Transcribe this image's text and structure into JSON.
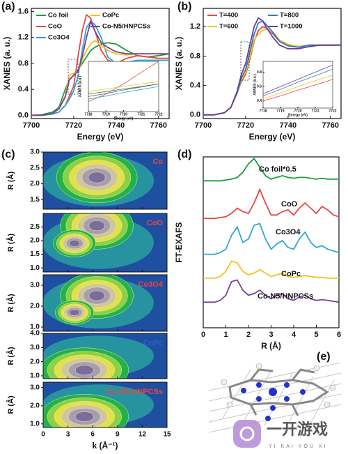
{
  "chart_data": [
    {
      "type": "line",
      "panel_label": "(a)",
      "xlabel": "Energy (eV)",
      "ylabel": "XANES (a. u.)",
      "xlim": [
        7700,
        7765
      ],
      "xticks": [
        7700,
        7720,
        7740,
        7760
      ],
      "ylim": [
        -0.05,
        1.65
      ],
      "yticks": [
        {
          "value": 0,
          "label": "0.0"
        },
        0.4,
        0.8,
        1.2,
        1.6
      ],
      "legend": true,
      "x": [
        7700,
        7705,
        7710,
        7713,
        7716,
        7718,
        7720,
        7722,
        7724,
        7726,
        7728,
        7730,
        7733,
        7736,
        7740,
        7745,
        7750,
        7755,
        7760,
        7765
      ],
      "series": [
        {
          "name": "Co foil",
          "color": "#1a9e3a",
          "values": [
            0.0,
            0.01,
            0.05,
            0.12,
            0.4,
            0.55,
            0.62,
            0.7,
            0.8,
            0.9,
            1.0,
            1.05,
            1.1,
            1.12,
            1.1,
            1.0,
            0.92,
            0.9,
            0.92,
            0.95
          ]
        },
        {
          "name": "CoO",
          "color": "#e8463f",
          "values": [
            0.0,
            0.0,
            0.02,
            0.05,
            0.15,
            0.3,
            0.45,
            0.9,
            1.3,
            1.55,
            1.5,
            1.3,
            1.0,
            0.85,
            0.8,
            0.88,
            0.92,
            0.9,
            0.88,
            0.88
          ]
        },
        {
          "name": "Co3O4",
          "color": "#2ba6d6",
          "values": [
            0.0,
            0.0,
            0.02,
            0.05,
            0.15,
            0.25,
            0.38,
            0.6,
            1.0,
            1.35,
            1.45,
            1.4,
            1.2,
            0.9,
            0.8,
            0.82,
            0.85,
            0.85,
            0.85,
            0.85
          ]
        },
        {
          "name": "CoPc",
          "color": "#f2c318",
          "values": [
            0.0,
            0.0,
            0.03,
            0.1,
            0.3,
            0.62,
            0.65,
            0.68,
            0.85,
            1.0,
            1.1,
            1.15,
            1.08,
            1.0,
            0.95,
            0.93,
            0.95,
            0.95,
            0.95,
            0.95
          ]
        },
        {
          "name": "Co-N5/HNPCSs",
          "color": "#7b3f9e",
          "values": [
            0.0,
            0.0,
            0.03,
            0.1,
            0.28,
            0.55,
            0.62,
            0.68,
            0.9,
            1.2,
            1.45,
            1.3,
            1.12,
            1.05,
            0.98,
            0.95,
            0.95,
            0.95,
            0.95,
            0.95
          ]
        }
      ]
    },
    {
      "type": "line",
      "xlabel": "Energy (eV)",
      "ylabel": "XANES (a.u.)",
      "xlim": [
        7718,
        7722
      ],
      "xticks": [
        7718,
        7719,
        7720,
        7721,
        7722
      ],
      "ylim": [
        0,
        1
      ],
      "x": [
        7718,
        7719,
        7720,
        7721,
        7722
      ],
      "series": [
        {
          "color": "#1a9e3a",
          "values": [
            0.35,
            0.4,
            0.45,
            0.5,
            0.55
          ]
        },
        {
          "color": "#e8463f",
          "values": [
            0.2,
            0.35,
            0.55,
            0.78,
            1.0
          ]
        },
        {
          "color": "#2ba6d6",
          "values": [
            0.25,
            0.31,
            0.38,
            0.44,
            0.5
          ]
        },
        {
          "color": "#f2c318",
          "values": [
            0.4,
            0.45,
            0.5,
            0.55,
            0.6
          ]
        },
        {
          "color": "#7b3f9e",
          "values": [
            0.3,
            0.36,
            0.43,
            0.49,
            0.55
          ]
        }
      ]
    },
    {
      "type": "line",
      "panel_label": "(b)",
      "xlabel": "Energy (eV)",
      "ylabel": "XANES (a. u.)",
      "xlim": [
        7700,
        7765
      ],
      "xticks": [
        7700,
        7720,
        7740,
        7760
      ],
      "ylim": [
        -0.05,
        1.45
      ],
      "yticks": [
        {
          "value": 0,
          "label": "0.0"
        },
        0.4,
        0.8,
        1.2
      ],
      "legend": true,
      "x": [
        7700,
        7705,
        7710,
        7713,
        7716,
        7718,
        7720,
        7722,
        7724,
        7726,
        7728,
        7730,
        7733,
        7736,
        7740,
        7745,
        7750,
        7755,
        7760,
        7765
      ],
      "series": [
        {
          "name": "T=400",
          "color": "#e8463f",
          "values": [
            0.0,
            0.0,
            0.03,
            0.1,
            0.3,
            0.45,
            0.55,
            0.75,
            1.0,
            1.15,
            1.2,
            1.18,
            1.1,
            1.0,
            0.95,
            0.93,
            0.95,
            0.95,
            0.95,
            0.95
          ]
        },
        {
          "name": "T=600",
          "color": "#f2c318",
          "values": [
            0.0,
            0.0,
            0.03,
            0.1,
            0.3,
            0.47,
            0.58,
            0.78,
            1.02,
            1.1,
            1.15,
            1.17,
            1.12,
            1.02,
            0.96,
            0.93,
            0.95,
            0.95,
            0.95,
            0.95
          ]
        },
        {
          "name": "T=800",
          "color": "#2b7fc4",
          "values": [
            0.0,
            0.0,
            0.03,
            0.1,
            0.3,
            0.5,
            0.62,
            0.85,
            1.1,
            1.25,
            1.28,
            1.22,
            1.12,
            1.0,
            0.94,
            0.92,
            0.95,
            0.95,
            0.95,
            0.95
          ]
        },
        {
          "name": "T=1000",
          "color": "#6a3d9a",
          "values": [
            0.0,
            0.0,
            0.03,
            0.1,
            0.32,
            0.55,
            0.7,
            0.95,
            1.2,
            1.32,
            1.28,
            1.18,
            1.05,
            0.95,
            0.9,
            0.9,
            0.93,
            0.95,
            0.95,
            0.95
          ]
        }
      ]
    },
    {
      "type": "line",
      "xlabel": "Energy (eV)",
      "ylabel": "XANES (a.u.)",
      "xlim": [
        7718,
        7722
      ],
      "xticks": [
        7718,
        7719,
        7720,
        7721,
        7722
      ],
      "ylim": [
        0.3,
        0.95
      ],
      "yticks": [
        0.4,
        0.6,
        0.8
      ],
      "x": [
        7718,
        7719,
        7720,
        7721,
        7722
      ],
      "series": [
        {
          "color": "#e8463f",
          "values": [
            0.4,
            0.47,
            0.55,
            0.62,
            0.7
          ]
        },
        {
          "color": "#f2c318",
          "values": [
            0.43,
            0.51,
            0.6,
            0.68,
            0.76
          ]
        },
        {
          "color": "#2b7fc4",
          "values": [
            0.47,
            0.56,
            0.66,
            0.75,
            0.84
          ]
        },
        {
          "color": "#6a3d9a",
          "values": [
            0.5,
            0.6,
            0.7,
            0.8,
            0.9
          ]
        }
      ]
    },
    {
      "type": "contour",
      "panel_label": "(c)",
      "xlabel": "k (Å⁻¹)",
      "ylabel": "R (Å)",
      "xlim": [
        0,
        15
      ],
      "xticks": [
        0,
        3,
        6,
        9,
        12,
        15
      ],
      "panels": [
        {
          "label": "Co",
          "label_color": "#e8463f",
          "ylim": [
            1.2,
            3.0
          ],
          "yticks": [
            1.5,
            {
              "value": 2,
              "label": "2.0"
            },
            2.5,
            {
              "value": 3,
              "label": "3.0"
            }
          ]
        },
        {
          "label": "CoO",
          "label_color": "#e8463f",
          "ylim": [
            0.85,
            3.0
          ],
          "yticks": [
            {
              "value": 1,
              "label": "1.0"
            },
            1.5,
            {
              "value": 2,
              "label": "2.0"
            },
            2.5
          ]
        },
        {
          "label": "Co3O4",
          "label_color": "#e8463f",
          "ylim": [
            0.8,
            3.5
          ],
          "yticks": [
            {
              "value": 1,
              "label": "1.0"
            },
            {
              "value": 2,
              "label": "2.0"
            },
            {
              "value": 3,
              "label": "3.0"
            }
          ]
        },
        {
          "label": "CoPc",
          "label_color": "#2b5fd0",
          "ylim": [
            0.8,
            4.0
          ],
          "yticks": [
            {
              "value": 1,
              "label": "1.0"
            },
            {
              "value": 2,
              "label": "2.0"
            },
            {
              "value": 3,
              "label": "3.0"
            },
            {
              "value": 4,
              "label": "4.0"
            }
          ]
        },
        {
          "label": "Co-N5-HNPCSs",
          "label_color": "#e8463f",
          "ylim": [
            0.8,
            3.3
          ],
          "yticks": [
            {
              "value": 1,
              "label": "1.0"
            },
            {
              "value": 2,
              "label": "2.0"
            },
            {
              "value": 3,
              "label": "3.0"
            }
          ]
        }
      ]
    },
    {
      "type": "line",
      "panel_label": "(d)",
      "xlabel": "R (Å)",
      "ylabel": "FT-EXAFS",
      "xlim": [
        0,
        6
      ],
      "xticks": [
        0,
        1,
        2,
        3,
        4,
        5,
        6
      ],
      "ylim": [
        0,
        10
      ],
      "names_on_curves": true,
      "x": [
        0,
        0.25,
        0.5,
        0.75,
        1,
        1.25,
        1.5,
        1.75,
        2,
        2.25,
        2.5,
        2.75,
        3,
        3.25,
        3.5,
        3.75,
        4,
        4.25,
        4.5,
        4.75,
        5,
        5.25,
        5.5,
        5.75,
        6
      ],
      "series": [
        {
          "name": "Co foil*0.5",
          "color": "#1a9e3a",
          "values": [
            8.6,
            8.6,
            8.6,
            8.6,
            8.65,
            8.7,
            8.8,
            9.1,
            9.6,
            9.9,
            9.4,
            8.9,
            8.7,
            8.8,
            8.9,
            8.8,
            8.75,
            8.8,
            8.8,
            8.75,
            8.7,
            8.75,
            8.7,
            8.7,
            8.7
          ]
        },
        {
          "name": "CoO",
          "color": "#e8463f",
          "values": [
            6.4,
            6.4,
            6.4,
            6.45,
            6.5,
            6.7,
            7.0,
            6.8,
            6.7,
            7.3,
            8.1,
            7.3,
            6.6,
            6.6,
            6.8,
            6.9,
            6.6,
            7.0,
            7.3,
            7.0,
            6.7,
            7.1,
            6.9,
            6.6,
            6.5
          ]
        },
        {
          "name": "Co3O4",
          "color": "#2ba6d6",
          "values": [
            4.3,
            4.3,
            4.3,
            4.4,
            4.6,
            5.4,
            5.9,
            5.0,
            5.2,
            6.0,
            6.1,
            5.2,
            4.6,
            4.9,
            5.1,
            4.7,
            4.6,
            5.2,
            5.6,
            5.0,
            4.7,
            4.8,
            4.6,
            4.5,
            4.4
          ]
        },
        {
          "name": "CoPc",
          "color": "#f2c318",
          "values": [
            2.9,
            2.9,
            2.9,
            3.0,
            3.3,
            3.9,
            3.8,
            3.3,
            3.1,
            3.2,
            3.4,
            3.2,
            3.0,
            3.1,
            3.2,
            3.0,
            2.95,
            3.0,
            3.05,
            3.0,
            2.95,
            2.95,
            2.9,
            2.9,
            2.9
          ]
        },
        {
          "name": "Co-N5/HNPCSs",
          "color": "#7b3f9e",
          "values": [
            1.5,
            1.5,
            1.5,
            1.6,
            1.9,
            2.7,
            2.8,
            2.2,
            1.9,
            2.0,
            2.2,
            1.9,
            1.7,
            1.9,
            2.0,
            1.7,
            1.6,
            1.8,
            1.9,
            1.7,
            1.6,
            1.65,
            1.6,
            1.55,
            1.5
          ]
        }
      ]
    },
    {
      "type": "image",
      "panel_label": "(e)"
    }
  ],
  "watermark": {
    "text": "一开游戏",
    "subtext": "YI KAI YOU XI"
  }
}
